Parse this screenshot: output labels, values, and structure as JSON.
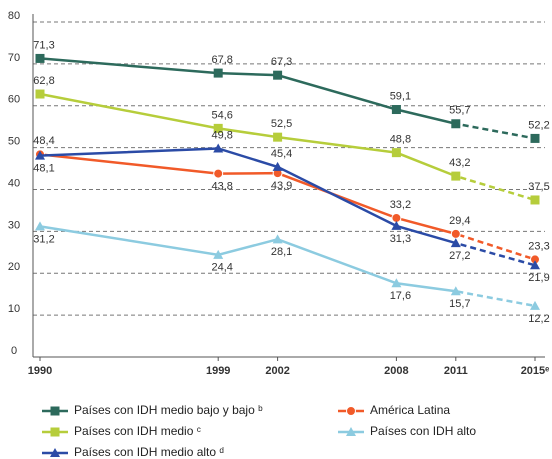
{
  "chart_data": {
    "type": "line",
    "x": [
      1990,
      1999,
      2002,
      2008,
      2011,
      2015
    ],
    "xlim": [
      1990,
      2015
    ],
    "xticks": [
      1990,
      1999,
      2002,
      2008,
      2011,
      {
        "value": 2015,
        "label": "2015ᵉ"
      }
    ],
    "ylim": [
      0,
      80
    ],
    "yticks": [
      0,
      10,
      20,
      30,
      40,
      50,
      60,
      70,
      80
    ],
    "grid": true,
    "series": [
      {
        "name": "Países con IDH medio bajo y bajo ᵇ",
        "color": "#2d6a5c",
        "marker": "square",
        "values": [
          71.3,
          67.8,
          67.3,
          59.1,
          55.7,
          52.2
        ],
        "value_labels": [
          "71,3",
          "67,8",
          "67,3",
          "59,1",
          "55,7",
          "52,2"
        ]
      },
      {
        "name": "América Latina",
        "color": "#f15a29",
        "marker": "circle",
        "values": [
          48.4,
          43.8,
          43.9,
          33.2,
          29.4,
          23.3
        ],
        "value_labels": [
          "48,4",
          "43,8",
          "43,9",
          "33,2",
          "29,4",
          "23,3"
        ]
      },
      {
        "name": "Países con IDH medio ᶜ",
        "color": "#b6cd3b",
        "marker": "square",
        "values": [
          62.8,
          54.6,
          52.5,
          48.8,
          43.2,
          37.5
        ],
        "value_labels": [
          "62,8",
          "54,6",
          "52,5",
          "48,8",
          "43,2",
          "37,5"
        ]
      },
      {
        "name": "Países con IDH alto",
        "color": "#8ccbe0",
        "marker": "triangle",
        "values": [
          31.2,
          24.4,
          28.1,
          17.6,
          15.7,
          12.2
        ],
        "value_labels": [
          "31,2",
          "24,4",
          "28,1",
          "17,6",
          "15,7",
          "12,2"
        ]
      },
      {
        "name": "Países con IDH medio alto ᵈ",
        "color": "#2b4ba6",
        "marker": "triangle",
        "values": [
          48.1,
          49.8,
          45.4,
          31.3,
          27.2,
          21.9
        ],
        "value_labels": [
          "48,1",
          "49,8",
          "45,4",
          "31,3",
          "27,2",
          "21,9"
        ]
      }
    ]
  }
}
